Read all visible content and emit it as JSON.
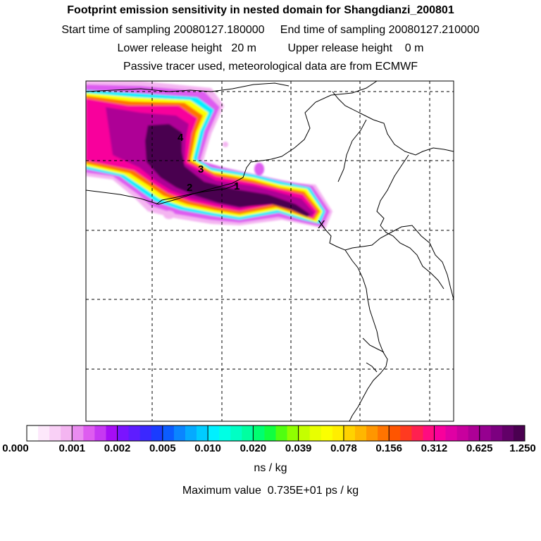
{
  "header": {
    "title": "Footprint emission sensitivity in nested domain for Shangdianzi_200801",
    "start_label": "Start time of sampling",
    "start_value": "20080127.180000",
    "end_label": "End time of sampling",
    "end_value": "20080127.210000",
    "lower_label": "Lower release height",
    "lower_value": "20 m",
    "upper_label": "Upper release height",
    "upper_value": "0 m",
    "tracer_note": "Passive tracer used, meteorological data are from ECMWF"
  },
  "map": {
    "markers": [
      "1",
      "2",
      "3",
      "4"
    ],
    "receptor_symbol": "X"
  },
  "colorbar": {
    "tick_labels": [
      "0.000",
      "0.001",
      "0.002",
      "0.005",
      "0.010",
      "0.020",
      "0.039",
      "0.078",
      "0.156",
      "0.312",
      "0.625",
      "1.250"
    ],
    "colors": [
      [
        "#ffffff",
        "#fde8fb",
        "#f9d0f6",
        "#f4b5f1"
      ],
      [
        "#ea8cf0",
        "#de5cf0",
        "#c638f2",
        "#a60df5"
      ],
      [
        "#7a14ff",
        "#5e1dff",
        "#3b28ff",
        "#1a3cff"
      ],
      [
        "#0b5cff",
        "#0a85ff",
        "#05aaff",
        "#00ccff"
      ],
      [
        "#00f0ff",
        "#00ffe4",
        "#00ffc4",
        "#00ffa0"
      ],
      [
        "#00ff70",
        "#10ff40",
        "#50ff10",
        "#90ff00"
      ],
      [
        "#c4ff00",
        "#e8ff00",
        "#fbff00",
        "#ffee00"
      ],
      [
        "#ffd200",
        "#ffb600",
        "#ff9600",
        "#ff7400"
      ],
      [
        "#ff5500",
        "#ff3a20",
        "#ff2050",
        "#ff0c80"
      ],
      [
        "#f8009c",
        "#e000a4",
        "#c8009e",
        "#ae0096"
      ],
      [
        "#960090",
        "#7c0080",
        "#620068",
        "#4a0050"
      ]
    ],
    "unit": "ns / kg",
    "max_label": "Maximum value",
    "max_value": "0.735E+01 ps / kg"
  }
}
